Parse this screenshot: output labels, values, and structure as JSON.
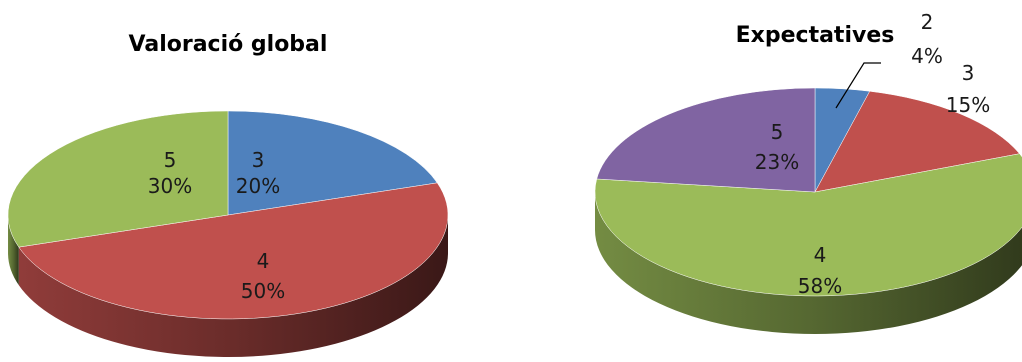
{
  "chart_data": [
    {
      "type": "pie",
      "title": "Valoració global",
      "slices": [
        {
          "category": "3",
          "value": 20,
          "label": "20%",
          "color": "#4F81BD"
        },
        {
          "category": "4",
          "value": 50,
          "label": "50%",
          "color": "#C0504D"
        },
        {
          "category": "5",
          "value": 30,
          "label": "30%",
          "color": "#9BBB59"
        }
      ]
    },
    {
      "type": "pie",
      "title": "Expectatives",
      "slices": [
        {
          "category": "2",
          "value": 4,
          "label": "4%",
          "color": "#4F81BD"
        },
        {
          "category": "3",
          "value": 15,
          "label": "15%",
          "color": "#C0504D"
        },
        {
          "category": "4",
          "value": 58,
          "label": "58%",
          "color": "#9BBB59"
        },
        {
          "category": "5",
          "value": 23,
          "label": "23%",
          "color": "#8064A2"
        }
      ]
    }
  ]
}
